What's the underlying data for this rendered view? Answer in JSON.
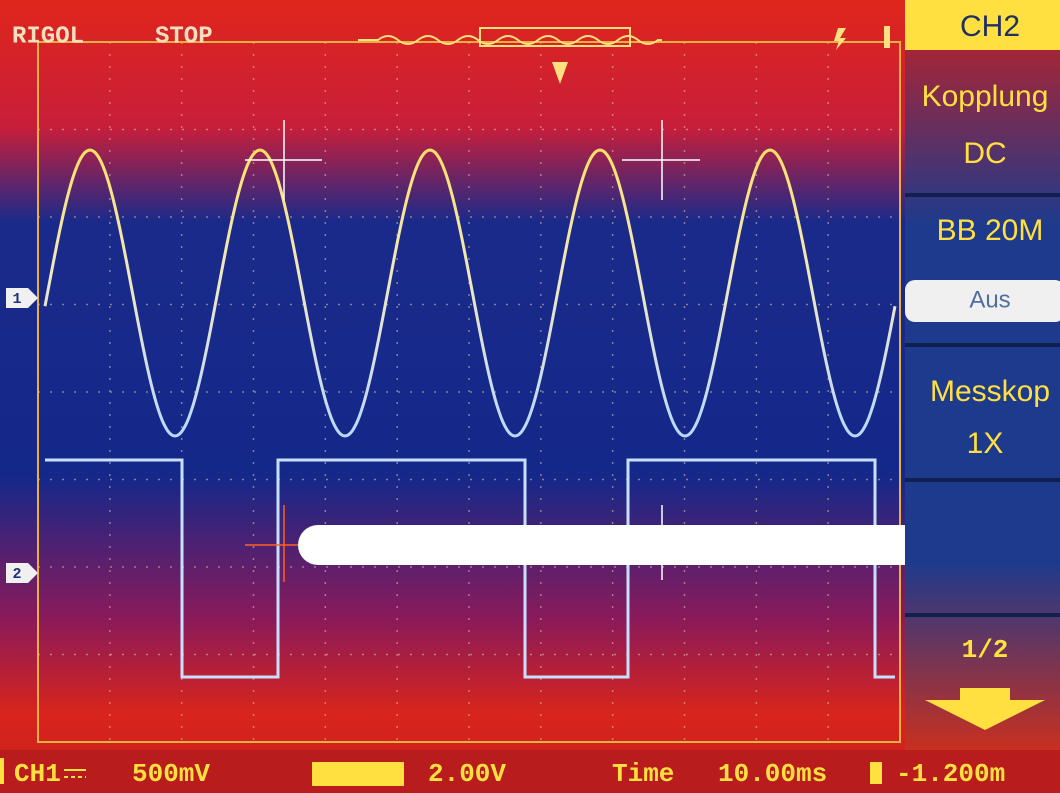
{
  "header": {
    "brand": "RIGOL",
    "status": "STOP"
  },
  "channel_markers": [
    "1",
    "2"
  ],
  "menu": {
    "title": "CH2",
    "items": [
      {
        "label": "Kopplung",
        "value": "DC"
      },
      {
        "label": "BB 20M",
        "value": "Aus"
      },
      {
        "label": "Messkop",
        "value": "1X"
      }
    ],
    "page": "1/2"
  },
  "footer": {
    "ch1_label": "CH1",
    "ch1_scale": "500mV",
    "ch2_scale": "2.00V",
    "time_label": "Time",
    "time_scale": "10.00ms",
    "trigger_offset": "-1.200m"
  }
}
